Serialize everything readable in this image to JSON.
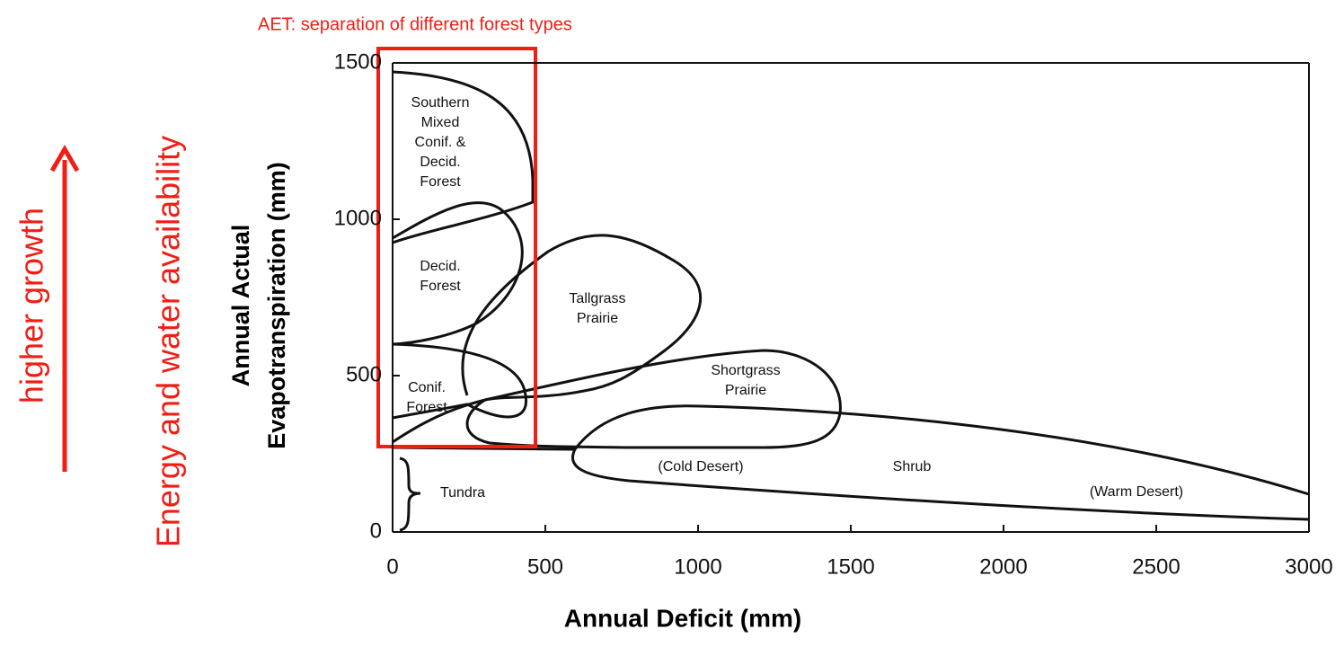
{
  "chart_data": {
    "type": "region",
    "subtitle": "AET: separation of different forest types",
    "xlabel": "Annual Deficit (mm)",
    "ylabel": [
      "Annual Actual",
      "Evapotranspiration (mm)"
    ],
    "annotations": [
      "higher growth",
      "Energy and water availability"
    ],
    "xlim": [
      0,
      3000
    ],
    "xticks": [
      0,
      500,
      1000,
      1500,
      2000,
      2500,
      3000
    ],
    "ylim": [
      0,
      1500
    ],
    "yticks": [
      0,
      500,
      1000,
      1500
    ],
    "regions": [
      {
        "label": [
          "Southern",
          "Mixed",
          "Conif. &",
          "Decid.",
          "Forest"
        ]
      },
      {
        "label": [
          "Decid.",
          "Forest"
        ]
      },
      {
        "label": [
          "Tallgrass",
          "Prairie"
        ]
      },
      {
        "label": [
          "Shortgrass",
          "Prairie"
        ]
      },
      {
        "label": [
          "Conif.",
          "Forest"
        ]
      },
      {
        "label": [
          "(Cold Desert)"
        ]
      },
      {
        "label": [
          "Shrub"
        ]
      },
      {
        "label": [
          "(Warm Desert)"
        ]
      },
      {
        "label": [
          "Tundra"
        ]
      }
    ]
  }
}
